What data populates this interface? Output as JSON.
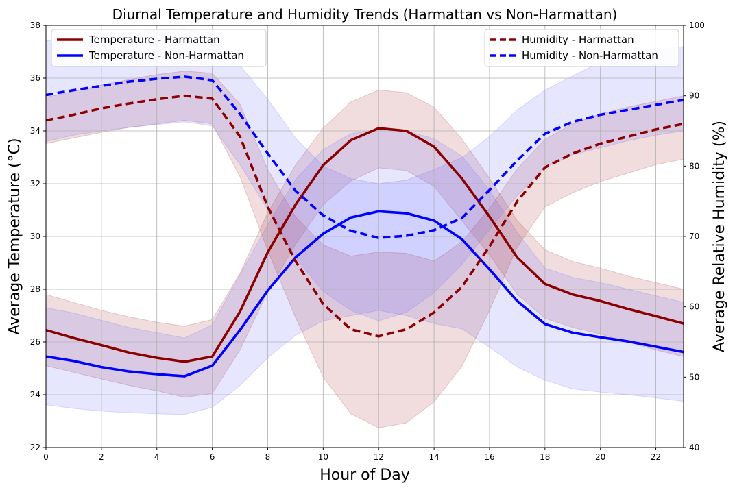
{
  "chart_data": {
    "type": "line",
    "title": "Diurnal Temperature and Humidity Trends (Harmattan vs Non-Harmattan)",
    "xlabel": "Hour of Day",
    "ylabel_left": "Average Temperature (°C)",
    "ylabel_right": "Average Relative Humidity (%)",
    "xlim": [
      0,
      23
    ],
    "ylim_left": [
      22,
      38
    ],
    "ylim_right": [
      40,
      100
    ],
    "x_ticks": [
      0,
      2,
      4,
      6,
      8,
      10,
      12,
      14,
      16,
      18,
      20,
      22
    ],
    "y_ticks_left": [
      22,
      24,
      26,
      28,
      30,
      32,
      34,
      36,
      38
    ],
    "y_ticks_right": [
      40,
      50,
      60,
      70,
      80,
      90,
      100
    ],
    "grid": true,
    "x": [
      0,
      1,
      2,
      3,
      4,
      5,
      6,
      7,
      8,
      9,
      10,
      11,
      12,
      13,
      14,
      15,
      16,
      17,
      18,
      19,
      20,
      21,
      22,
      23
    ],
    "series": [
      {
        "name": "Temperature - Harmattan",
        "axis": "left",
        "style": "solid",
        "color": "#8b0000",
        "band_color": "#a52a2a",
        "values": [
          26.45,
          26.15,
          25.88,
          25.6,
          25.4,
          25.25,
          25.45,
          27.15,
          29.4,
          31.2,
          32.7,
          33.65,
          34.1,
          34.0,
          33.4,
          32.2,
          30.75,
          29.2,
          28.2,
          27.8,
          27.55,
          27.25,
          26.98,
          26.7
        ],
        "lower": [
          25.1,
          24.85,
          24.6,
          24.35,
          24.15,
          23.9,
          24.05,
          25.7,
          27.9,
          29.7,
          31.2,
          32.1,
          32.6,
          32.5,
          31.9,
          30.6,
          29.3,
          27.8,
          26.9,
          26.55,
          26.3,
          26.0,
          25.7,
          25.45
        ],
        "upper": [
          27.8,
          27.5,
          27.2,
          26.95,
          26.75,
          26.6,
          26.85,
          28.6,
          30.9,
          32.7,
          34.1,
          35.1,
          35.55,
          35.45,
          34.9,
          33.7,
          32.2,
          30.6,
          29.5,
          29.05,
          28.8,
          28.5,
          28.25,
          28.0
        ]
      },
      {
        "name": "Temperature - Non-Harmattan",
        "axis": "left",
        "style": "solid",
        "color": "#0000ff",
        "band_color": "#6666ff",
        "values": [
          25.45,
          25.28,
          25.05,
          24.88,
          24.78,
          24.7,
          25.1,
          26.45,
          27.95,
          29.2,
          30.1,
          30.72,
          30.95,
          30.88,
          30.6,
          29.9,
          28.75,
          27.55,
          26.68,
          26.35,
          26.18,
          26.02,
          25.82,
          25.62
        ],
        "lower": [
          23.62,
          23.48,
          23.38,
          23.32,
          23.28,
          23.25,
          23.52,
          24.35,
          25.4,
          26.25,
          26.8,
          27.0,
          27.2,
          27.0,
          26.7,
          26.5,
          25.8,
          25.05,
          24.55,
          24.22,
          24.1,
          24.0,
          23.88,
          23.75
        ],
        "upper": [
          27.3,
          27.1,
          26.82,
          26.55,
          26.35,
          26.15,
          26.65,
          28.55,
          30.45,
          32.15,
          33.3,
          33.9,
          34.05,
          34.0,
          33.7,
          33.05,
          31.75,
          30.15,
          28.8,
          28.45,
          28.25,
          28.0,
          27.75,
          27.5
        ]
      },
      {
        "name": "Humidity - Harmattan",
        "axis": "right",
        "style": "dashed",
        "color": "#8b0000",
        "band_color": "#a52a2a",
        "values": [
          86.5,
          87.3,
          88.2,
          88.9,
          89.5,
          90.0,
          89.6,
          84.2,
          74.2,
          66.5,
          60.4,
          56.8,
          55.8,
          56.8,
          59.2,
          62.8,
          68.6,
          75.0,
          79.8,
          81.8,
          83.2,
          84.2,
          85.2,
          86.0
        ],
        "lower": [
          83.2,
          84.0,
          84.8,
          85.5,
          86.0,
          86.5,
          86.0,
          78.5,
          68.0,
          58.5,
          50.0,
          44.8,
          42.8,
          43.5,
          46.5,
          51.5,
          59.5,
          68.5,
          74.2,
          76.2,
          77.8,
          79.0,
          80.2,
          81.0
        ],
        "upper": [
          89.8,
          90.6,
          91.5,
          92.3,
          93.0,
          93.5,
          93.2,
          88.8,
          79.5,
          72.8,
          68.8,
          67.2,
          67.8,
          67.6,
          66.5,
          69.2,
          74.0,
          79.6,
          83.8,
          86.0,
          87.4,
          88.4,
          89.2,
          90.0
        ]
      },
      {
        "name": "Humidity - Non-Harmattan",
        "axis": "right",
        "style": "dashed",
        "color": "#0000ff",
        "band_color": "#6666ff",
        "values": [
          90.1,
          90.8,
          91.4,
          92.0,
          92.4,
          92.7,
          92.2,
          87.4,
          81.8,
          76.5,
          73.0,
          70.8,
          69.8,
          70.1,
          70.9,
          72.6,
          76.6,
          80.8,
          84.6,
          86.3,
          87.3,
          88.0,
          88.7,
          89.4
        ],
        "lower": [
          83.5,
          84.4,
          85.0,
          85.5,
          85.9,
          86.3,
          85.7,
          80.2,
          73.8,
          67.0,
          62.2,
          59.5,
          58.0,
          59.2,
          62.0,
          66.0,
          71.0,
          75.8,
          79.8,
          81.6,
          82.6,
          83.6,
          84.4,
          85.0
        ],
        "upper": [
          97.8,
          98.3,
          98.7,
          99.0,
          99.3,
          99.5,
          98.8,
          94.3,
          89.5,
          84.0,
          80.0,
          78.2,
          77.5,
          78.0,
          79.5,
          81.2,
          84.2,
          88.0,
          90.8,
          92.8,
          94.8,
          96.0,
          96.5,
          97.0
        ]
      }
    ],
    "legend_left": [
      "Temperature - Harmattan",
      "Temperature - Non-Harmattan"
    ],
    "legend_right": [
      "Humidity - Harmattan",
      "Humidity - Non-Harmattan"
    ],
    "legend_placement": [
      "top-left",
      "top-right"
    ]
  }
}
